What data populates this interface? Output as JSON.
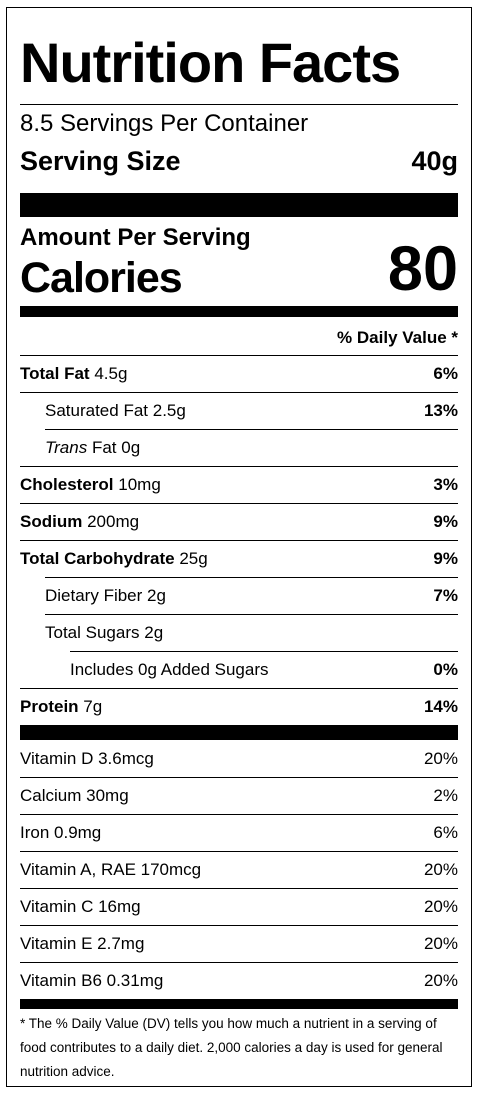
{
  "title": "Nutrition Facts",
  "servings_per_container": "8.5 Servings Per Container",
  "serving_size": {
    "label": "Serving Size",
    "value": "40g"
  },
  "amount_per_serving": "Amount Per Serving",
  "calories": {
    "label": "Calories",
    "value": "80"
  },
  "daily_value_header": "% Daily Value *",
  "nutrients": [
    {
      "name": "Total Fat",
      "amount": "4.5g",
      "dv": "6%"
    },
    {
      "name": "Saturated Fat",
      "amount": "2.5g",
      "dv": "13%"
    },
    {
      "name_italic": "Trans",
      "name": "Fat",
      "amount": "0g",
      "dv": ""
    },
    {
      "name": "Cholesterol",
      "amount": "10mg",
      "dv": "3%"
    },
    {
      "name": "Sodium",
      "amount": "200mg",
      "dv": "9%"
    },
    {
      "name": "Total Carbohydrate",
      "amount": "25g",
      "dv": "9%"
    },
    {
      "name": "Dietary Fiber",
      "amount": "2g",
      "dv": "7%"
    },
    {
      "name": "Total Sugars",
      "amount": "2g",
      "dv": ""
    },
    {
      "name": "Includes 0g Added Sugars",
      "dv": "0%"
    },
    {
      "name": "Protein",
      "amount": "7g",
      "dv": "14%"
    }
  ],
  "vitamins": [
    {
      "name": "Vitamin D 3.6mcg",
      "dv": "20%"
    },
    {
      "name": "Calcium 30mg",
      "dv": "2%"
    },
    {
      "name": "Iron 0.9mg",
      "dv": "6%"
    },
    {
      "name": "Vitamin A, RAE 170mcg",
      "dv": "20%"
    },
    {
      "name": "Vitamin C 16mg",
      "dv": "20%"
    },
    {
      "name": "Vitamin E 2.7mg",
      "dv": "20%"
    },
    {
      "name": "Vitamin B6 0.31mg",
      "dv": "20%"
    }
  ],
  "footnote": "* The % Daily Value (DV) tells you how much a nutrient in a serving of food contributes to a daily diet. 2,000 calories a day is used for general nutrition advice."
}
